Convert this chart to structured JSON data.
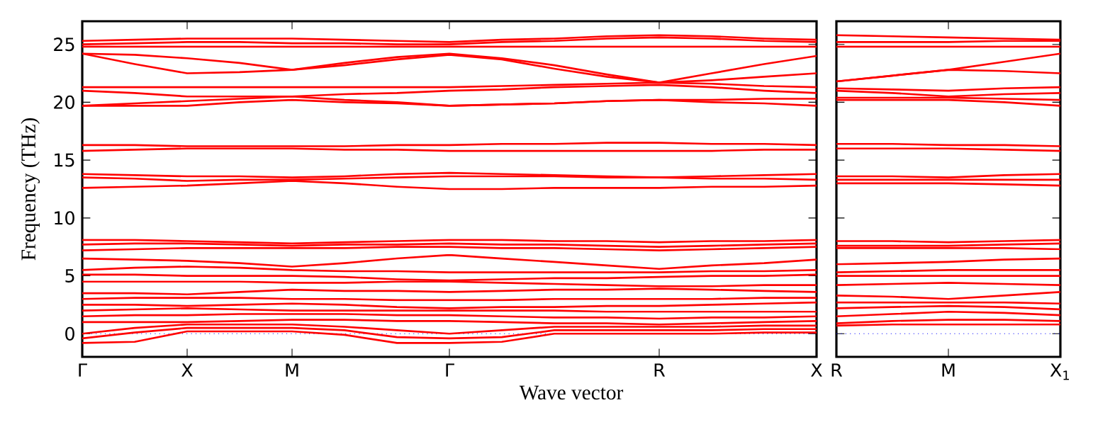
{
  "chart_data": [
    {
      "type": "line",
      "xlabel": "Wave vector",
      "ylabel": "Frequency (THz)",
      "ylim": [
        -2,
        27
      ],
      "line_style": "solid",
      "marker": "none",
      "categories": [
        "Γ",
        null,
        "X",
        null,
        "M",
        null,
        null,
        "Γ",
        null,
        null,
        null,
        "R",
        null,
        null,
        "X"
      ],
      "yticks": [
        0,
        5,
        10,
        15,
        20,
        25
      ],
      "ref_lines": [
        {
          "axis": "y",
          "value": 0,
          "color": "#0000ff",
          "line_style": "dotted"
        }
      ],
      "series": [
        {
          "color": "#ff0000",
          "values": [
            25.3,
            25.4,
            25.5,
            25.5,
            25.5,
            25.4,
            25.3,
            25.2,
            25.4,
            25.5,
            25.7,
            25.8,
            25.7,
            25.5,
            25.4
          ]
        },
        {
          "color": "#ff0000",
          "values": [
            25.0,
            25.1,
            25.2,
            25.2,
            25.1,
            25.1,
            25.0,
            25.0,
            25.2,
            25.3,
            25.5,
            25.6,
            25.5,
            25.3,
            25.2
          ]
        },
        {
          "color": "#ff0000",
          "values": [
            24.8,
            24.8,
            24.8,
            24.8,
            24.8,
            24.8,
            24.8,
            24.8,
            24.8,
            24.8,
            24.8,
            24.8,
            24.8,
            24.8,
            24.8
          ]
        },
        {
          "color": "#ff0000",
          "values": [
            24.2,
            24.1,
            23.8,
            23.4,
            22.8,
            23.4,
            23.9,
            24.2,
            23.8,
            23.2,
            22.4,
            21.7,
            22.5,
            23.3,
            24.0
          ]
        },
        {
          "color": "#ff0000",
          "values": [
            24.2,
            23.3,
            22.5,
            22.6,
            22.8,
            23.2,
            23.7,
            24.1,
            23.7,
            22.9,
            22.2,
            21.7,
            21.9,
            22.2,
            22.5
          ]
        },
        {
          "color": "#ff0000",
          "values": [
            21.3,
            21.3,
            21.3,
            21.3,
            21.3,
            21.3,
            21.3,
            21.3,
            21.4,
            21.5,
            21.6,
            21.7,
            21.6,
            21.4,
            21.3
          ]
        },
        {
          "color": "#ff0000",
          "values": [
            21.0,
            20.8,
            20.5,
            20.5,
            20.5,
            20.7,
            20.8,
            21.0,
            21.1,
            21.3,
            21.4,
            21.5,
            21.3,
            21.0,
            20.8
          ]
        },
        {
          "color": "#ff0000",
          "values": [
            19.7,
            19.9,
            20.1,
            20.3,
            20.5,
            20.2,
            20.0,
            19.7,
            19.8,
            19.9,
            20.1,
            20.2,
            20.2,
            20.3,
            20.3
          ]
        },
        {
          "color": "#ff0000",
          "values": [
            19.7,
            19.7,
            19.7,
            20.0,
            20.2,
            20.0,
            19.9,
            19.7,
            19.8,
            19.9,
            20.1,
            20.2,
            20.0,
            19.9,
            19.7
          ]
        },
        {
          "color": "#ff0000",
          "values": [
            16.3,
            16.3,
            16.2,
            16.2,
            16.2,
            16.2,
            16.3,
            16.3,
            16.4,
            16.4,
            16.5,
            16.5,
            16.4,
            16.4,
            16.3
          ]
        },
        {
          "color": "#ff0000",
          "values": [
            15.8,
            15.9,
            16.0,
            16.0,
            16.0,
            15.9,
            15.9,
            15.8,
            15.8,
            15.8,
            15.8,
            15.8,
            15.8,
            15.9,
            15.9
          ]
        },
        {
          "color": "#ff0000",
          "values": [
            13.8,
            13.7,
            13.6,
            13.6,
            13.5,
            13.6,
            13.8,
            13.9,
            13.8,
            13.7,
            13.6,
            13.5,
            13.6,
            13.7,
            13.8
          ]
        },
        {
          "color": "#ff0000",
          "values": [
            13.5,
            13.4,
            13.2,
            13.3,
            13.3,
            13.4,
            13.5,
            13.6,
            13.6,
            13.6,
            13.5,
            13.5,
            13.4,
            13.4,
            13.3
          ]
        },
        {
          "color": "#ff0000",
          "values": [
            12.6,
            12.7,
            12.8,
            13.0,
            13.2,
            13.0,
            12.7,
            12.5,
            12.5,
            12.6,
            12.6,
            12.6,
            12.7,
            12.7,
            12.8
          ]
        },
        {
          "color": "#ff0000",
          "values": [
            8.1,
            8.1,
            8.0,
            7.9,
            7.8,
            7.9,
            8.0,
            8.1,
            8.1,
            8.0,
            8.0,
            7.9,
            8.0,
            8.0,
            8.1
          ]
        },
        {
          "color": "#ff0000",
          "values": [
            7.7,
            7.8,
            7.8,
            7.7,
            7.6,
            7.7,
            7.7,
            7.8,
            7.7,
            7.7,
            7.6,
            7.5,
            7.6,
            7.7,
            7.8
          ]
        },
        {
          "color": "#ff0000",
          "values": [
            7.2,
            7.3,
            7.4,
            7.4,
            7.4,
            7.4,
            7.5,
            7.5,
            7.4,
            7.4,
            7.3,
            7.2,
            7.3,
            7.4,
            7.5
          ]
        },
        {
          "color": "#ff0000",
          "values": [
            6.5,
            6.4,
            6.3,
            6.1,
            5.8,
            6.1,
            6.5,
            6.8,
            6.5,
            6.2,
            5.9,
            5.6,
            5.9,
            6.1,
            6.4
          ]
        },
        {
          "color": "#ff0000",
          "values": [
            5.5,
            5.7,
            5.8,
            5.7,
            5.5,
            5.4,
            5.4,
            5.3,
            5.3,
            5.3,
            5.3,
            5.3,
            5.4,
            5.4,
            5.5
          ]
        },
        {
          "color": "#ff0000",
          "values": [
            5.1,
            5.1,
            5.0,
            5.0,
            5.0,
            4.9,
            4.7,
            4.6,
            4.7,
            4.8,
            4.8,
            4.9,
            5.0,
            5.0,
            5.1
          ]
        },
        {
          "color": "#ff0000",
          "values": [
            4.5,
            4.5,
            4.5,
            4.5,
            4.4,
            4.4,
            4.5,
            4.5,
            4.4,
            4.3,
            4.2,
            4.1,
            4.1,
            4.2,
            4.2
          ]
        },
        {
          "color": "#ff0000",
          "values": [
            3.5,
            3.5,
            3.4,
            3.6,
            3.8,
            3.7,
            3.7,
            3.6,
            3.7,
            3.8,
            3.8,
            3.9,
            3.8,
            3.7,
            3.6
          ]
        },
        {
          "color": "#ff0000",
          "values": [
            3.0,
            3.1,
            3.1,
            3.1,
            3.0,
            3.0,
            2.9,
            2.9,
            2.9,
            3.0,
            3.0,
            3.0,
            3.0,
            3.1,
            3.1
          ]
        },
        {
          "color": "#ff0000",
          "values": [
            2.5,
            2.5,
            2.4,
            2.5,
            2.6,
            2.5,
            2.3,
            2.2,
            2.3,
            2.3,
            2.4,
            2.4,
            2.5,
            2.6,
            2.7
          ]
        },
        {
          "color": "#ff0000",
          "values": [
            2.0,
            2.1,
            2.2,
            2.1,
            2.0,
            2.0,
            2.0,
            2.0,
            2.0,
            2.0,
            1.9,
            1.9,
            1.9,
            1.9,
            1.9
          ]
        },
        {
          "color": "#ff0000",
          "values": [
            1.5,
            1.6,
            1.6,
            1.7,
            1.7,
            1.7,
            1.6,
            1.6,
            1.5,
            1.4,
            1.4,
            1.3,
            1.4,
            1.4,
            1.5
          ]
        },
        {
          "color": "#ff0000",
          "values": [
            1.0,
            1.0,
            1.0,
            1.1,
            1.2,
            1.2,
            1.1,
            1.1,
            1.0,
            0.9,
            0.9,
            0.8,
            0.9,
            1.0,
            1.1
          ]
        },
        {
          "color": "#ff0000",
          "values": [
            0,
            0.5,
            0.8,
            0.8,
            0.8,
            0.6,
            0.3,
            0,
            0.3,
            0.6,
            0.6,
            0.6,
            0.6,
            0.7,
            0.7
          ]
        },
        {
          "color": "#ff0000",
          "values": [
            -0.8,
            -0.7,
            0.2,
            0.2,
            0.2,
            -0.1,
            -0.8,
            -0.8,
            -0.7,
            0.0,
            0.0,
            0.0,
            0.0,
            0.1,
            0.1
          ]
        },
        {
          "color": "#ff0000",
          "values": [
            -0.4,
            0.1,
            0.5,
            0.5,
            0.5,
            0.3,
            -0.3,
            -0.4,
            -0.3,
            0.3,
            0.3,
            0.3,
            0.3,
            0.4,
            0.4
          ]
        }
      ]
    },
    {
      "type": "line",
      "ylim": [
        -2,
        27
      ],
      "tick_labels": "x",
      "line_style": "solid",
      "marker": "none",
      "categories": [
        "R",
        null,
        "M",
        null,
        "X$_{1}$"
      ],
      "yticks": [
        0,
        5,
        10,
        15,
        20,
        25
      ],
      "ref_lines": [
        {
          "axis": "y",
          "value": 0,
          "color": "#0000ff",
          "line_style": "dotted"
        }
      ],
      "series": [
        {
          "color": "#ff0000",
          "values": [
            25.8,
            25.7,
            25.6,
            25.5,
            25.4
          ]
        },
        {
          "color": "#ff0000",
          "values": [
            25.2,
            25.2,
            25.2,
            25.3,
            25.3
          ]
        },
        {
          "color": "#ff0000",
          "values": [
            24.8,
            24.8,
            24.8,
            24.8,
            24.8
          ]
        },
        {
          "color": "#ff0000",
          "values": [
            21.8,
            22.3,
            22.8,
            23.5,
            24.2
          ]
        },
        {
          "color": "#ff0000",
          "values": [
            21.8,
            22.3,
            22.8,
            22.7,
            22.5
          ]
        },
        {
          "color": "#ff0000",
          "values": [
            21.2,
            21.1,
            21.0,
            21.2,
            21.3
          ]
        },
        {
          "color": "#ff0000",
          "values": [
            21.0,
            20.8,
            20.5,
            20.7,
            20.8
          ]
        },
        {
          "color": "#ff0000",
          "values": [
            20.4,
            20.4,
            20.4,
            20.3,
            20.2
          ]
        },
        {
          "color": "#ff0000",
          "values": [
            20.2,
            20.2,
            20.2,
            20.0,
            19.7
          ]
        },
        {
          "color": "#ff0000",
          "values": [
            16.4,
            16.4,
            16.3,
            16.3,
            16.2
          ]
        },
        {
          "color": "#ff0000",
          "values": [
            16.0,
            16.0,
            16.0,
            15.9,
            15.8
          ]
        },
        {
          "color": "#ff0000",
          "values": [
            13.6,
            13.6,
            13.5,
            13.7,
            13.8
          ]
        },
        {
          "color": "#ff0000",
          "values": [
            13.3,
            13.3,
            13.3,
            13.3,
            13.3
          ]
        },
        {
          "color": "#ff0000",
          "values": [
            13.0,
            13.0,
            13.0,
            12.9,
            12.8
          ]
        },
        {
          "color": "#ff0000",
          "values": [
            8.0,
            8.0,
            7.9,
            8.0,
            8.1
          ]
        },
        {
          "color": "#ff0000",
          "values": [
            7.6,
            7.6,
            7.6,
            7.7,
            7.8
          ]
        },
        {
          "color": "#ff0000",
          "values": [
            7.4,
            7.4,
            7.4,
            7.4,
            7.3
          ]
        },
        {
          "color": "#ff0000",
          "values": [
            6.0,
            6.1,
            6.2,
            6.4,
            6.5
          ]
        },
        {
          "color": "#ff0000",
          "values": [
            5.3,
            5.4,
            5.5,
            5.5,
            5.5
          ]
        },
        {
          "color": "#ff0000",
          "values": [
            5.0,
            5.0,
            5.0,
            5.0,
            5.0
          ]
        },
        {
          "color": "#ff0000",
          "values": [
            4.2,
            4.3,
            4.4,
            4.3,
            4.2
          ]
        },
        {
          "color": "#ff0000",
          "values": [
            3.3,
            3.2,
            3.0,
            3.3,
            3.6
          ]
        },
        {
          "color": "#ff0000",
          "values": [
            2.7,
            2.7,
            2.7,
            2.7,
            2.6
          ]
        },
        {
          "color": "#ff0000",
          "values": [
            2.2,
            2.3,
            2.4,
            2.3,
            2.1
          ]
        },
        {
          "color": "#ff0000",
          "values": [
            1.5,
            1.7,
            1.9,
            1.8,
            1.6
          ]
        },
        {
          "color": "#ff0000",
          "values": [
            0.9,
            1.1,
            1.2,
            1.2,
            1.1
          ]
        },
        {
          "color": "#ff0000",
          "values": [
            0.7,
            0.8,
            0.8,
            0.8,
            0.8
          ]
        }
      ]
    }
  ]
}
